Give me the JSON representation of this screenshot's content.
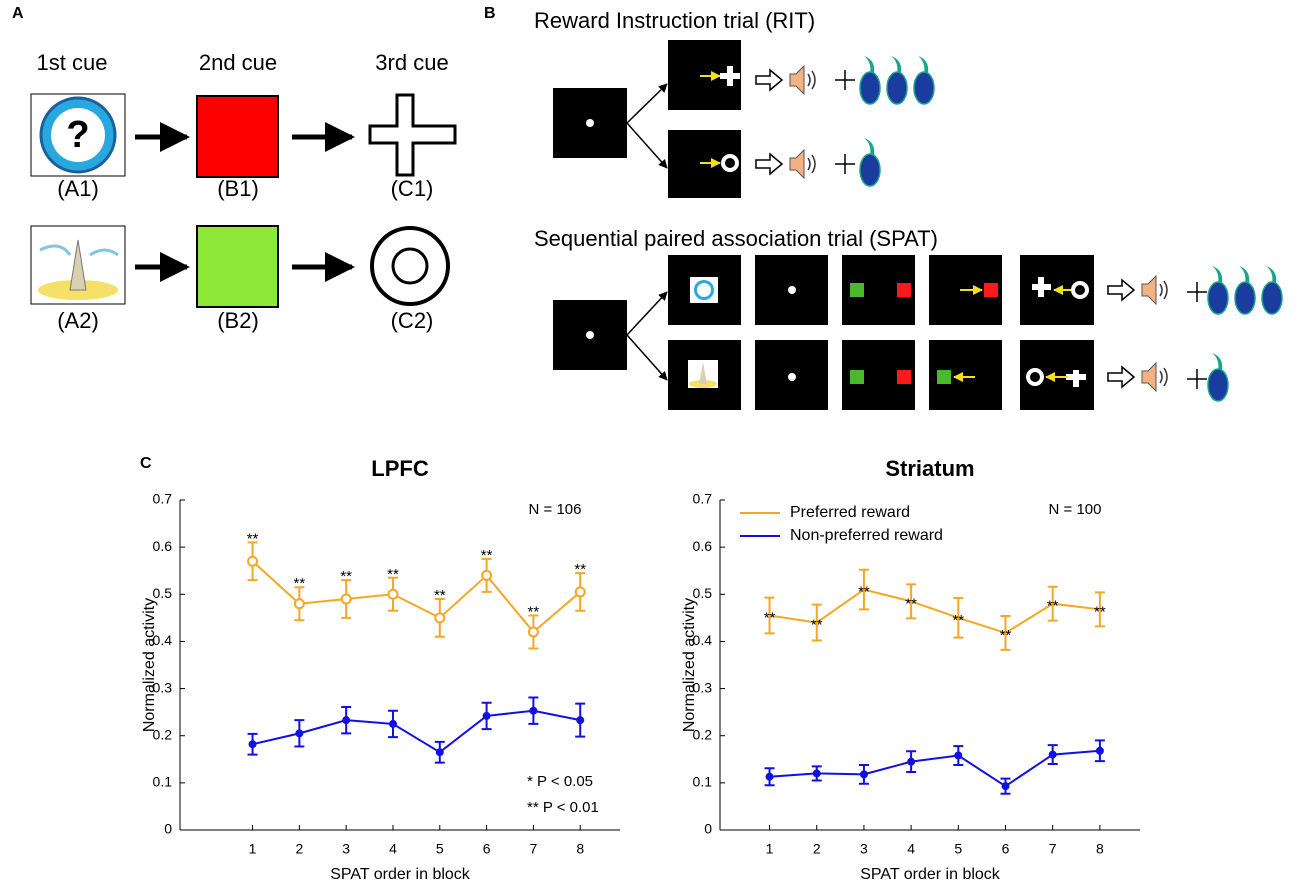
{
  "panel_a": {
    "label": "A",
    "columns": [
      "1st cue",
      "2nd cue",
      "3rd cue"
    ],
    "rows": [
      [
        "(A1)",
        "(B1)",
        "(C1)"
      ],
      [
        "(A2)",
        "(B2)",
        "(C2)"
      ]
    ]
  },
  "panel_b": {
    "label": "B",
    "rit_title": "Reward Instruction trial (RIT)",
    "spat_title": "Sequential paired association trial (SPAT)"
  },
  "panel_c": {
    "label": "C"
  },
  "chart_data": [
    {
      "type": "line",
      "title": "LPFC",
      "x_label": "SPAT order in block",
      "y_label": "Normalized activity",
      "x": [
        1,
        2,
        3,
        4,
        5,
        6,
        7,
        8
      ],
      "xlim": [
        -0.55,
        8.85
      ],
      "xticks": [
        1,
        2,
        3,
        4,
        5,
        6,
        7,
        8
      ],
      "ylim": [
        0,
        0.7
      ],
      "yticks": [
        0,
        0.1,
        0.2,
        0.3,
        0.4,
        0.5,
        0.6,
        0.7
      ],
      "annotation": "N = 106",
      "significance_legend": [
        "* P < 0.05",
        "** P < 0.01"
      ],
      "series": [
        {
          "color": "#f5a623",
          "marker": "open-circle",
          "marker_label_position": "above",
          "values": [
            0.57,
            0.48,
            0.49,
            0.5,
            0.45,
            0.54,
            0.42,
            0.505
          ],
          "errors": [
            0.04,
            0.035,
            0.04,
            0.035,
            0.04,
            0.035,
            0.035,
            0.04
          ],
          "marker_labels": [
            "**",
            "**",
            "**",
            "**",
            "**",
            "**",
            "**",
            "**"
          ]
        },
        {
          "color": "#1010e0",
          "marker": "dot",
          "values": [
            0.182,
            0.205,
            0.233,
            0.225,
            0.165,
            0.242,
            0.253,
            0.233
          ],
          "errors": [
            0.022,
            0.028,
            0.028,
            0.028,
            0.022,
            0.028,
            0.028,
            0.035
          ]
        }
      ]
    },
    {
      "type": "line",
      "title": "Striatum",
      "x_label": "SPAT order in block",
      "y_label": "Normalized activity",
      "x": [
        1,
        2,
        3,
        4,
        5,
        6,
        7,
        8
      ],
      "xlim": [
        -0.05,
        8.85
      ],
      "xticks": [
        1,
        2,
        3,
        4,
        5,
        6,
        7,
        8
      ],
      "ylim": [
        0,
        0.7
      ],
      "yticks": [
        0,
        0.1,
        0.2,
        0.3,
        0.4,
        0.5,
        0.6,
        0.7
      ],
      "annotation": "N = 100",
      "legend": "top-left",
      "series": [
        {
          "name": "Preferred reward",
          "color": "#f5a623",
          "marker": "none",
          "marker_label_position": "center",
          "values": [
            0.455,
            0.44,
            0.51,
            0.485,
            0.45,
            0.418,
            0.48,
            0.468
          ],
          "errors": [
            0.038,
            0.038,
            0.042,
            0.036,
            0.042,
            0.036,
            0.036,
            0.036
          ],
          "marker_labels": [
            "**",
            "**",
            "**",
            "**",
            "**",
            "**",
            "**",
            "**"
          ]
        },
        {
          "name": "Non-preferred reward",
          "color": "#1010e0",
          "marker": "dot",
          "values": [
            0.113,
            0.12,
            0.118,
            0.145,
            0.158,
            0.093,
            0.16,
            0.168
          ],
          "errors": [
            0.018,
            0.015,
            0.02,
            0.022,
            0.02,
            0.016,
            0.02,
            0.022
          ]
        }
      ]
    }
  ]
}
